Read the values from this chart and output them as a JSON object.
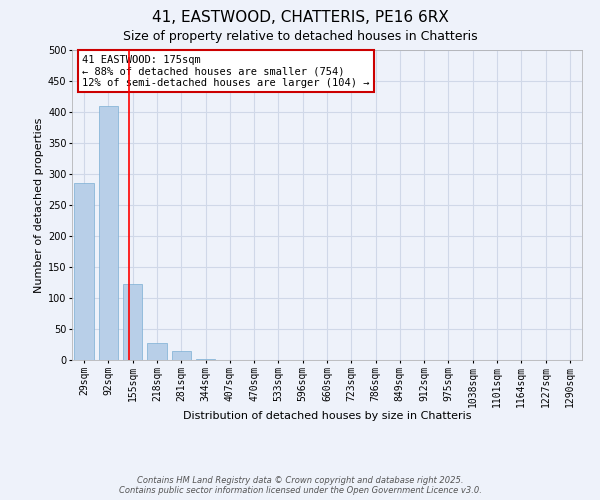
{
  "title": "41, EASTWOOD, CHATTERIS, PE16 6RX",
  "subtitle": "Size of property relative to detached houses in Chatteris",
  "xlabel": "Distribution of detached houses by size in Chatteris",
  "ylabel": "Number of detached properties",
  "bar_labels": [
    "29sqm",
    "92sqm",
    "155sqm",
    "218sqm",
    "281sqm",
    "344sqm",
    "407sqm",
    "470sqm",
    "533sqm",
    "596sqm",
    "660sqm",
    "723sqm",
    "786sqm",
    "849sqm",
    "912sqm",
    "975sqm",
    "1038sqm",
    "1101sqm",
    "1164sqm",
    "1227sqm",
    "1290sqm"
  ],
  "bar_values": [
    285,
    410,
    122,
    28,
    15,
    2,
    0,
    0,
    0,
    0,
    0,
    0,
    0,
    0,
    0,
    0,
    0,
    0,
    0,
    0,
    0
  ],
  "bar_color": "#b8cfe8",
  "bar_edgecolor": "#7bafd4",
  "grid_color": "#d0d8e8",
  "background_color": "#eef2fa",
  "red_line_x": 1.854,
  "annotation_title": "41 EASTWOOD: 175sqm",
  "annotation_line1": "← 88% of detached houses are smaller (754)",
  "annotation_line2": "12% of semi-detached houses are larger (104) →",
  "annotation_box_color": "#ffffff",
  "annotation_box_edgecolor": "#cc0000",
  "ylim": [
    0,
    500
  ],
  "yticks": [
    0,
    50,
    100,
    150,
    200,
    250,
    300,
    350,
    400,
    450,
    500
  ],
  "footer_line1": "Contains HM Land Registry data © Crown copyright and database right 2025.",
  "footer_line2": "Contains public sector information licensed under the Open Government Licence v3.0.",
  "title_fontsize": 11,
  "subtitle_fontsize": 9,
  "axis_label_fontsize": 8,
  "tick_fontsize": 7,
  "annotation_fontsize": 7.5,
  "footer_fontsize": 6
}
